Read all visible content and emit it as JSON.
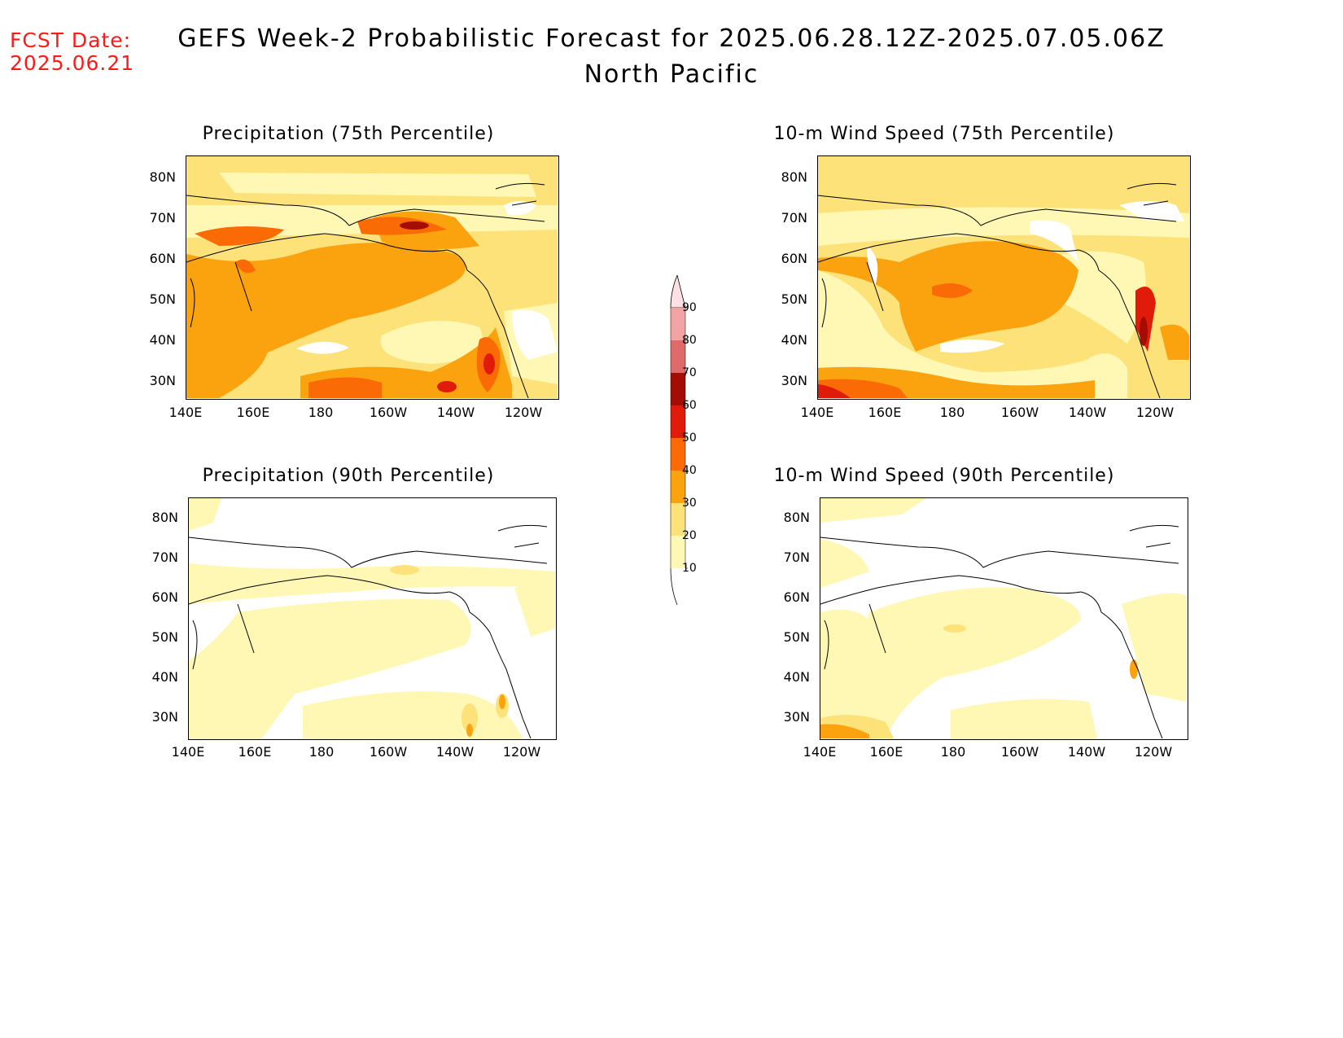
{
  "header": {
    "fcst_label": "FCST Date:",
    "fcst_date": "2025.06.21",
    "title": "GEFS Week-2 Probabilistic Forecast for 2025.06.28.12Z-2025.07.05.06Z",
    "subtitle": "North Pacific"
  },
  "panels": [
    {
      "id": "precip75",
      "title": "Precipitation (75th Percentile)"
    },
    {
      "id": "wind75",
      "title": "10-m Wind Speed (75th Percentile)"
    },
    {
      "id": "precip90",
      "title": "Precipitation (90th Percentile)"
    },
    {
      "id": "wind90",
      "title": "10-m Wind Speed (90th Percentile)"
    }
  ],
  "axes": {
    "lat_labels": [
      "80N",
      "70N",
      "60N",
      "50N",
      "40N",
      "30N"
    ],
    "lon_labels": [
      "140E",
      "160E",
      "180",
      "160W",
      "140W",
      "120W"
    ]
  },
  "colorbar": {
    "levels": [
      "10",
      "20",
      "30",
      "40",
      "50",
      "60",
      "70",
      "80",
      "90"
    ],
    "colors": [
      "#fff8b4",
      "#fde27a",
      "#fba20f",
      "#fa6a05",
      "#e01b0a",
      "#a40d03",
      "#df6a6a",
      "#f2a4a4",
      "#fde0e3"
    ]
  }
}
